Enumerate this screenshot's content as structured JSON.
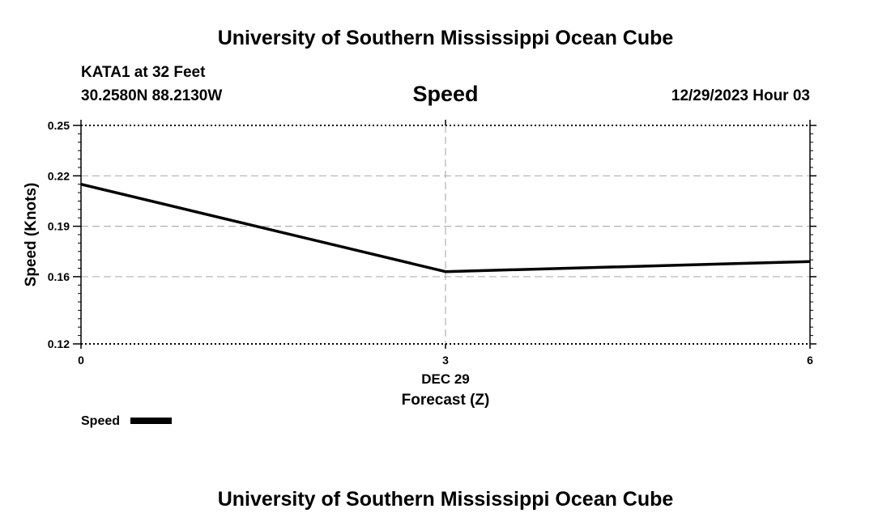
{
  "header": {
    "title": "University of Southern Mississippi Ocean Cube",
    "station": "KATA1 at 32 Feet",
    "location": "30.2580N  88.2130W",
    "variable": "Speed",
    "datetime": "12/29/2023 Hour 03"
  },
  "footer": {
    "title": "University of Southern Mississippi Ocean Cube"
  },
  "chart_data": {
    "type": "line",
    "title": "Speed",
    "xlabel": "Forecast (Z)",
    "xdate_label": "DEC 29",
    "ylabel": "Speed (Knots)",
    "xlim": [
      0,
      6
    ],
    "ylim": [
      0.12,
      0.25
    ],
    "xticks": [
      "0",
      "3",
      "6"
    ],
    "yticks": [
      "0.25",
      "0.22",
      "0.19",
      "0.16",
      "0.12"
    ],
    "grid": true,
    "legend": "bottom-left",
    "series": [
      {
        "name": "Speed",
        "color": "#000000",
        "x": [
          0,
          3,
          6
        ],
        "values": [
          0.215,
          0.163,
          0.169
        ]
      }
    ]
  }
}
